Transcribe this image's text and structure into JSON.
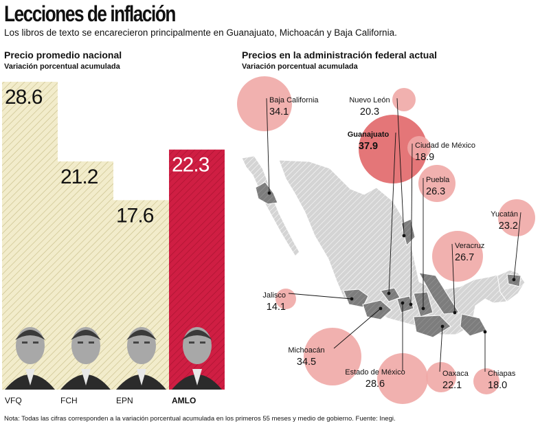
{
  "header": {
    "title": "Lecciones de inflación",
    "subtitle": "Los libros de texto se encarecieron principalmente en Guanajuato, Michoacán y Baja California."
  },
  "left_panel": {
    "title": "Precio promedio nacional",
    "subtitle": "Variación porcentual acumulada"
  },
  "right_panel": {
    "title": "Precios en la administración federal actual",
    "subtitle": "Variación porcentual acumulada"
  },
  "footnote": "Nota: Todas las cifras corresponden a la variación porcentual acumulada en los primeros 55 meses y medio de gobierno. Fuente: Inegi.",
  "colors": {
    "beige_bar": "#f2eccb",
    "red_bar": "#cf1e43",
    "bubble": "#f0a9a6",
    "bubble_strong": "#e26a6c",
    "map_light": "#d4d4d4",
    "map_dark": "#7d7d7d"
  },
  "chart_data": [
    {
      "type": "bar",
      "title": "Precio promedio nacional",
      "ylabel": "Variación porcentual acumulada",
      "categories": [
        "VFQ",
        "FCH",
        "EPN",
        "AMLO"
      ],
      "values": [
        28.6,
        21.2,
        17.6,
        22.3
      ],
      "value_labels": [
        "28.6",
        "21.2",
        "17.6",
        "22.3"
      ],
      "highlight": "AMLO",
      "ylim": [
        0,
        30
      ]
    },
    {
      "type": "scatter",
      "title": "Precios en la administración federal actual",
      "ylabel": "Variación porcentual acumulada",
      "states": [
        {
          "name": "Baja California",
          "value": "34.1"
        },
        {
          "name": "Nuevo León",
          "value": "20.3"
        },
        {
          "name": "Guanajuato",
          "value": "37.9"
        },
        {
          "name": "Ciudad de México",
          "value": "18.9"
        },
        {
          "name": "Puebla",
          "value": "26.3"
        },
        {
          "name": "Yucatán",
          "value": "23.2"
        },
        {
          "name": "Veracruz",
          "value": "26.7"
        },
        {
          "name": "Jalisco",
          "value": "14.1"
        },
        {
          "name": "Michoacán",
          "value": "34.5"
        },
        {
          "name": "Estado de México",
          "value": "28.6"
        },
        {
          "name": "Oaxaca",
          "value": "22.1"
        },
        {
          "name": "Chiapas",
          "value": "18.0"
        }
      ]
    }
  ]
}
